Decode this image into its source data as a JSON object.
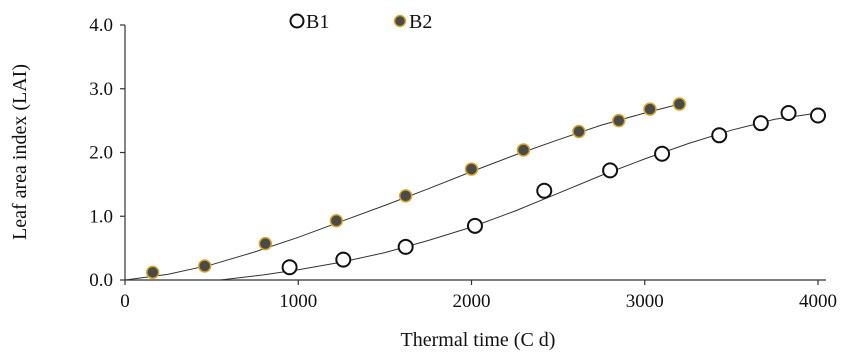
{
  "chart_data": {
    "type": "scatter",
    "xlabel": "Thermal time (C d)",
    "ylabel": "Leaf area index (LAI)",
    "xlim": [
      0,
      4000
    ],
    "ylim": [
      0,
      4
    ],
    "xticks": [
      0,
      1000,
      2000,
      3000,
      4000
    ],
    "xtick_labels": [
      "0",
      "1000",
      "2000",
      "3000",
      "4000"
    ],
    "yticks": [
      0,
      1,
      2,
      3,
      4
    ],
    "ytick_labels": [
      "0.0",
      "1.0",
      "2.0",
      "3.0",
      "4.0"
    ],
    "grid": false,
    "legend_position": "top",
    "series": [
      {
        "name": "B1",
        "marker": "open-circle",
        "marker_fill": "#ffffff",
        "marker_stroke": "#111111",
        "x": [
          950,
          1260,
          1620,
          2020,
          2420,
          2800,
          3100,
          3430,
          3670,
          3830,
          4000
        ],
        "y": [
          0.2,
          0.32,
          0.52,
          0.85,
          1.4,
          1.72,
          1.98,
          2.27,
          2.46,
          2.62,
          2.58
        ],
        "fit": {
          "x": [
            550,
            800,
            1000,
            1250,
            1500,
            1750,
            2000,
            2250,
            2500,
            2750,
            3000,
            3250,
            3500,
            3750,
            4000
          ],
          "y": [
            0.0,
            0.08,
            0.16,
            0.28,
            0.43,
            0.62,
            0.83,
            1.08,
            1.36,
            1.64,
            1.9,
            2.14,
            2.35,
            2.52,
            2.62
          ]
        }
      },
      {
        "name": "B2",
        "marker": "filled-circle",
        "marker_fill": "#4a4a4a",
        "marker_stroke": "#d8a826",
        "x": [
          160,
          460,
          810,
          1220,
          1620,
          2000,
          2300,
          2620,
          2850,
          3030,
          3200
        ],
        "y": [
          0.12,
          0.22,
          0.57,
          0.93,
          1.32,
          1.74,
          2.04,
          2.33,
          2.5,
          2.68,
          2.76
        ],
        "fit": {
          "x": [
            0,
            250,
            500,
            750,
            1000,
            1250,
            1500,
            1750,
            2000,
            2250,
            2500,
            2750,
            3000,
            3200
          ],
          "y": [
            0.0,
            0.09,
            0.24,
            0.44,
            0.67,
            0.92,
            1.17,
            1.43,
            1.7,
            1.96,
            2.2,
            2.43,
            2.62,
            2.76
          ]
        }
      }
    ]
  }
}
